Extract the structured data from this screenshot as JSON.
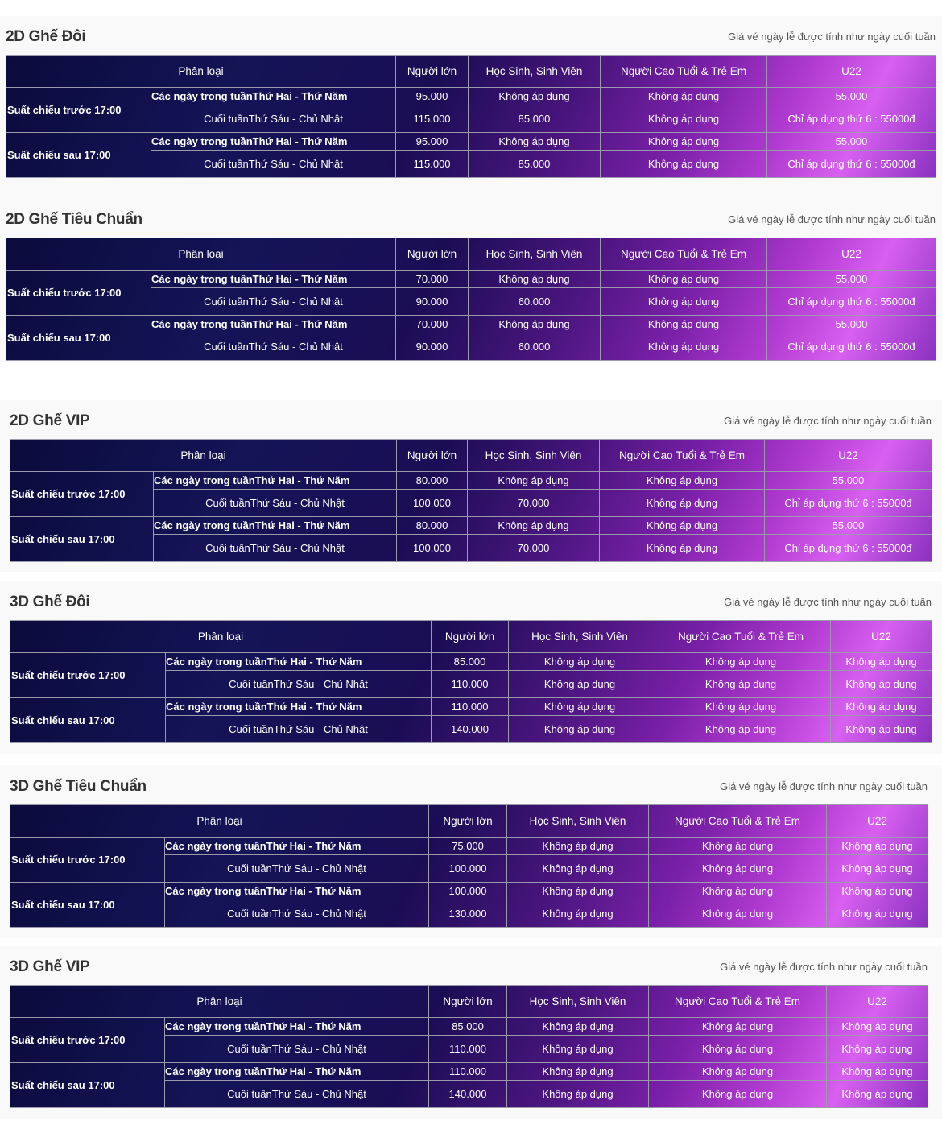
{
  "note": "Giá vé ngày lễ được tính như ngày cuối tuần",
  "headers": [
    "Phân loại",
    "Người lớn",
    "Học Sinh, Sinh Viên",
    "Người Cao Tuổi & Trẻ Em",
    "U22"
  ],
  "showtimes": [
    "Suất chiếu trước 17:00",
    "Suất chiếu sau 17:00"
  ],
  "day_types": [
    "Các ngày trong tuầnThứ Hai - Thứ Năm",
    "Cuối tuầnThứ Sáu - Chủ Nhật"
  ],
  "colors": {
    "navy": "#0b0b3d",
    "purple": "#7a20a8",
    "pink": "#d860f0"
  },
  "sections": [
    {
      "title": "2D Ghế Đôi",
      "rows": [
        [
          "95.000",
          "Không áp dụng",
          "Không áp dụng",
          "55.000"
        ],
        [
          "115.000",
          "85.000",
          "Không áp dụng",
          "Chỉ áp dụng thứ 6 : 55000đ"
        ],
        [
          "95.000",
          "Không áp dụng",
          "Không áp dụng",
          "55.000"
        ],
        [
          "115.000",
          "85.000",
          "Không áp dụng",
          "Chỉ áp dụng thứ 6 : 55000đ"
        ]
      ]
    },
    {
      "title": "2D Ghế Tiêu Chuẩn",
      "rows": [
        [
          "70.000",
          "Không áp dụng",
          "Không áp dụng",
          "55.000"
        ],
        [
          "90.000",
          "60.000",
          "Không áp dụng",
          "Chỉ áp dụng thứ 6 : 55000đ"
        ],
        [
          "70.000",
          "Không áp dụng",
          "Không áp dụng",
          "55.000"
        ],
        [
          "90.000",
          "60.000",
          "Không áp dụng",
          "Chỉ áp dụng thứ 6 : 55000đ"
        ]
      ]
    },
    {
      "title": "2D Ghế VIP",
      "rows": [
        [
          "80.000",
          "Không áp dụng",
          "Không áp dụng",
          "55.000"
        ],
        [
          "100.000",
          "70.000",
          "Không áp dụng",
          "Chỉ áp dụng thứ 6 : 55000đ"
        ],
        [
          "80.000",
          "Không áp dụng",
          "Không áp dụng",
          "55.000"
        ],
        [
          "100.000",
          "70.000",
          "Không áp dụng",
          "Chỉ áp dụng thứ 6 : 55000đ"
        ]
      ]
    },
    {
      "title": "3D Ghế Đôi",
      "rows": [
        [
          "85.000",
          "Không áp dụng",
          "Không áp dụng",
          "Không áp dụng"
        ],
        [
          "110.000",
          "Không áp dụng",
          "Không áp dụng",
          "Không áp dụng"
        ],
        [
          "110.000",
          "Không áp dụng",
          "Không áp dụng",
          "Không áp dụng"
        ],
        [
          "140.000",
          "Không áp dụng",
          "Không áp dụng",
          "Không áp dụng"
        ]
      ]
    },
    {
      "title": "3D Ghế Tiêu Chuẩn",
      "rows": [
        [
          "75.000",
          "Không áp dụng",
          "Không áp dụng",
          "Không áp dụng"
        ],
        [
          "100.000",
          "Không áp dụng",
          "Không áp dụng",
          "Không áp dụng"
        ],
        [
          "100.000",
          "Không áp dụng",
          "Không áp dụng",
          "Không áp dụng"
        ],
        [
          "130.000",
          "Không áp dụng",
          "Không áp dụng",
          "Không áp dụng"
        ]
      ]
    },
    {
      "title": "3D Ghế VIP",
      "rows": [
        [
          "85.000",
          "Không áp dụng",
          "Không áp dụng",
          "Không áp dụng"
        ],
        [
          "110.000",
          "Không áp dụng",
          "Không áp dụng",
          "Không áp dụng"
        ],
        [
          "110.000",
          "Không áp dụng",
          "Không áp dụng",
          "Không áp dụng"
        ],
        [
          "140.000",
          "Không áp dụng",
          "Không áp dụng",
          "Không áp dụng"
        ]
      ]
    }
  ]
}
